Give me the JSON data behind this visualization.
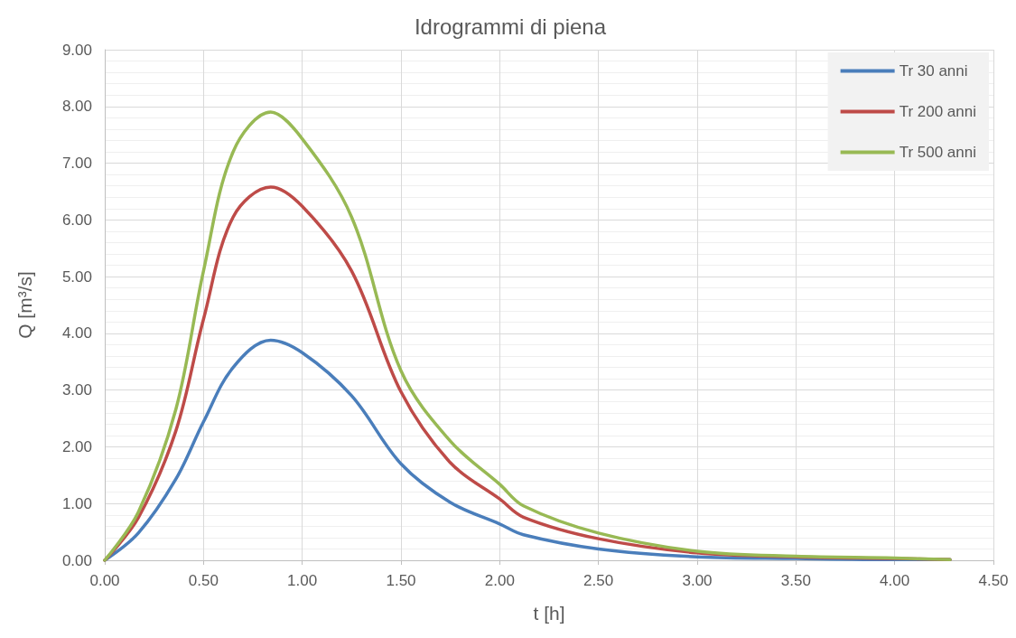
{
  "chart_data": {
    "type": "line",
    "title": "Idrogrammi di piena",
    "xlabel": "t [h]",
    "ylabel": "Q [m³/s]",
    "x": [
      0,
      0.17,
      0.36,
      0.5,
      0.65,
      0.84,
      1.0,
      1.25,
      1.5,
      1.75,
      2.0,
      2.12,
      2.5,
      3.0,
      3.5,
      4.0,
      4.28
    ],
    "series": [
      {
        "name": "Tr 30 anni",
        "color": "#4a7ebb",
        "values": [
          0,
          0.48,
          1.43,
          2.44,
          3.4,
          3.88,
          3.66,
          2.9,
          1.7,
          1.02,
          0.64,
          0.45,
          0.2,
          0.06,
          0.03,
          0.01,
          0.01
        ]
      },
      {
        "name": "Tr 200 anni",
        "color": "#be4b48",
        "values": [
          0,
          0.75,
          2.28,
          4.25,
          6.05,
          6.58,
          6.24,
          5.1,
          2.97,
          1.72,
          1.08,
          0.76,
          0.38,
          0.13,
          0.06,
          0.03,
          0.01
        ]
      },
      {
        "name": "Tr 500 anni",
        "color": "#98b954",
        "values": [
          0,
          0.85,
          2.66,
          5.1,
          7.2,
          7.9,
          7.43,
          6.05,
          3.34,
          2.1,
          1.34,
          0.96,
          0.48,
          0.16,
          0.07,
          0.04,
          0.01
        ]
      }
    ],
    "xlim": [
      0,
      4.5
    ],
    "xticks": [
      {
        "value": 0,
        "label": "0.00"
      },
      {
        "value": 0.5,
        "label": "0.50"
      },
      {
        "value": 1,
        "label": "1.00"
      },
      {
        "value": 1.5,
        "label": "1.50"
      },
      {
        "value": 2,
        "label": "2.00"
      },
      {
        "value": 2.5,
        "label": "2.50"
      },
      {
        "value": 3,
        "label": "3.00"
      },
      {
        "value": 3.5,
        "label": "3.50"
      },
      {
        "value": 4,
        "label": "4.00"
      },
      {
        "value": 4.5,
        "label": "4.50"
      }
    ],
    "ylim": [
      0,
      9
    ],
    "yticks": [
      {
        "value": 0,
        "label": "0.00"
      },
      {
        "value": 1,
        "label": "1.00"
      },
      {
        "value": 2,
        "label": "2.00"
      },
      {
        "value": 3,
        "label": "3.00"
      },
      {
        "value": 4,
        "label": "4.00"
      },
      {
        "value": 5,
        "label": "5.00"
      },
      {
        "value": 6,
        "label": "6.00"
      },
      {
        "value": 7,
        "label": "7.00"
      },
      {
        "value": 8,
        "label": "8.00"
      },
      {
        "value": 9,
        "label": "9.00"
      }
    ],
    "grid": true,
    "legend": "top right",
    "marker": "none",
    "line_style": "solid"
  }
}
